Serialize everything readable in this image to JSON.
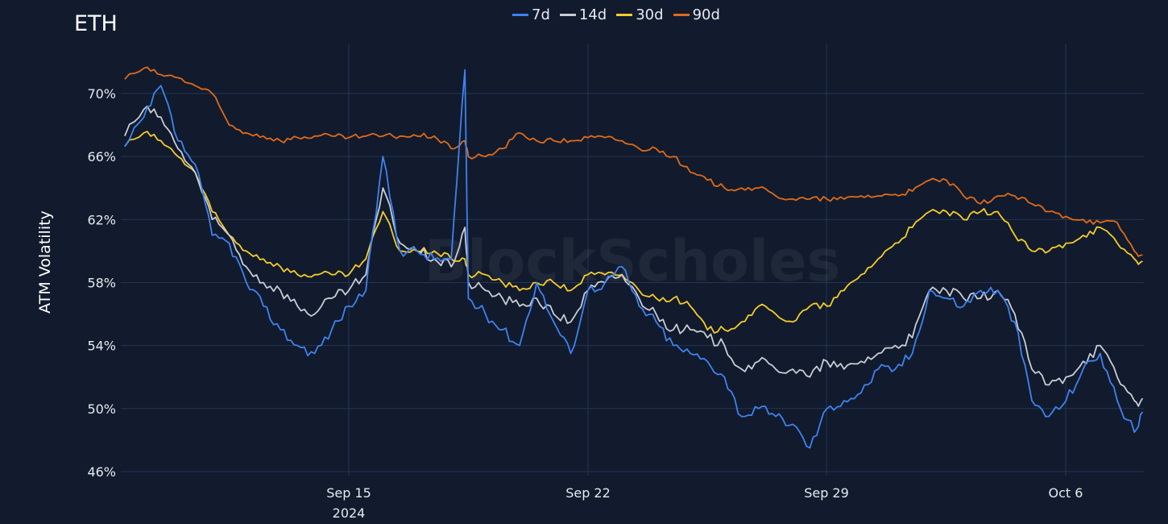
{
  "title": "ETH",
  "watermark": "BlockScholes",
  "legend": [
    {
      "name": "7d",
      "color": "#3f82f0"
    },
    {
      "name": "14d",
      "color": "#c9ccd4"
    },
    {
      "name": "30d",
      "color": "#f5cc2a"
    },
    {
      "name": "90d",
      "color": "#df6a1a"
    }
  ],
  "y_axis": {
    "label": "ATM Volatility",
    "ticks": [
      "46%",
      "50%",
      "54%",
      "58%",
      "62%",
      "66%",
      "70%"
    ]
  },
  "x_axis": {
    "ticks": [
      {
        "label": "Sep 15",
        "sub": "2024"
      },
      {
        "label": "Sep 22",
        "sub": ""
      },
      {
        "label": "Sep 29",
        "sub": ""
      },
      {
        "label": "Oct 6",
        "sub": ""
      }
    ]
  },
  "chart_data": {
    "type": "line",
    "title": "ETH",
    "xlabel": "",
    "ylabel": "ATM Volatility",
    "ylim": [
      45.5,
      73
    ],
    "yticks": [
      46,
      50,
      54,
      58,
      62,
      66,
      70
    ],
    "xticks": [
      "Sep 15 2024",
      "Sep 22",
      "Sep 29",
      "Oct 6"
    ],
    "grid": true,
    "legend_position": "top-center",
    "x": [
      "Sep 8.3",
      "Sep 9",
      "Sep 9.5",
      "Sep 10",
      "Sep 10.5",
      "Sep 11",
      "Sep 11.5",
      "Sep 12",
      "Sep 12.5",
      "Sep 13",
      "Sep 13.5",
      "Sep 14",
      "Sep 14.5",
      "Sep 15",
      "Sep 15.5",
      "Sep 16",
      "Sep 16.5",
      "Sep 17",
      "Sep 17.5",
      "Sep 18",
      "Sep 18.4",
      "Sep 18.5",
      "Sep 19",
      "Sep 19.5",
      "Sep 20",
      "Sep 20.5",
      "Sep 21",
      "Sep 21.5",
      "Sep 22",
      "Sep 22.5",
      "Sep 23",
      "Sep 23.5",
      "Sep 24",
      "Sep 24.5",
      "Sep 25",
      "Sep 25.5",
      "Sep 26",
      "Sep 26.5",
      "Sep 27",
      "Sep 27.5",
      "Sep 28",
      "Sep 28.5",
      "Sep 29",
      "Sep 29.5",
      "Sep 30",
      "Sep 30.5",
      "Oct 1",
      "Oct 1.5",
      "Oct 2",
      "Oct 2.5",
      "Oct 3",
      "Oct 3.5",
      "Oct 4",
      "Oct 4.5",
      "Oct 5",
      "Oct 5.5",
      "Oct 6",
      "Oct 6.5",
      "Oct 7",
      "Oct 7.5",
      "Oct 8",
      "Oct 8.3"
    ],
    "series": [
      {
        "name": "7d",
        "values": [
          66,
          68.5,
          70.5,
          67,
          65.5,
          61,
          60.5,
          58,
          56.5,
          55,
          54,
          53.5,
          55,
          56.5,
          57.5,
          66,
          60,
          60,
          59.5,
          59.5,
          71.5,
          57,
          56,
          55,
          54,
          58,
          55.5,
          53.5,
          57.5,
          58,
          59,
          56.5,
          55.5,
          54,
          53.5,
          53,
          52,
          49.5,
          50,
          49.5,
          49,
          47.5,
          50,
          50.5,
          51,
          52.5,
          52.5,
          53.5,
          57.5,
          57,
          56.5,
          57.5,
          57.5,
          55.5,
          50.5,
          49.5,
          50.5,
          52.5,
          53.5,
          50.5,
          48.5,
          49.8
        ]
      },
      {
        "name": "14d",
        "values": [
          67,
          69,
          68.5,
          66.5,
          65,
          62,
          61,
          59,
          58,
          57.5,
          56.5,
          56,
          57,
          57.5,
          58.5,
          64,
          60.5,
          60,
          59.5,
          59,
          61.5,
          58,
          57.5,
          57,
          56.5,
          57,
          56,
          55.5,
          57.5,
          58,
          58.5,
          57,
          56,
          55,
          55,
          54.5,
          54,
          52.5,
          53,
          52.5,
          52.5,
          52,
          53,
          52.5,
          53,
          53.5,
          54,
          54.5,
          57.5,
          57.5,
          57,
          57,
          57.5,
          56,
          52.5,
          51.5,
          52,
          53,
          54,
          52,
          50.5,
          50.5
        ]
      },
      {
        "name": "30d",
        "values": [
          66.5,
          67.5,
          67,
          66,
          65,
          62.5,
          61,
          60,
          59.5,
          59,
          58.5,
          58.5,
          58.5,
          58.5,
          59.5,
          62.5,
          60,
          60,
          60,
          59.5,
          59.5,
          58.5,
          58.5,
          58,
          57.5,
          58,
          58,
          57.5,
          58.5,
          58.5,
          58.5,
          57.5,
          57,
          57,
          56.5,
          55,
          55,
          55.5,
          56.5,
          56,
          55.5,
          56.5,
          56.5,
          57.5,
          58.5,
          59.5,
          60.5,
          61.5,
          62.5,
          62.5,
          62,
          62.5,
          62.5,
          61,
          60,
          60,
          60.5,
          61,
          61.5,
          60.5,
          59.5,
          59.2
        ]
      },
      {
        "name": "90d",
        "values": [
          70.8,
          71.6,
          71.2,
          71,
          70.5,
          70,
          68,
          67.5,
          67.3,
          67,
          67.2,
          67.3,
          67.3,
          67.2,
          67.3,
          67.3,
          67.3,
          67.3,
          67.3,
          66.5,
          67,
          66,
          66,
          66.5,
          67.5,
          67,
          67,
          67,
          67.2,
          67.2,
          67,
          66.5,
          66.5,
          66,
          65,
          64.5,
          64,
          64,
          64,
          63.5,
          63.3,
          63.3,
          63.3,
          63.3,
          63.5,
          63.5,
          63.6,
          63.8,
          64.5,
          64.5,
          63.5,
          63,
          63.5,
          63.5,
          63,
          62.5,
          62.2,
          62,
          61.8,
          61.8,
          60,
          59.6
        ]
      }
    ]
  }
}
